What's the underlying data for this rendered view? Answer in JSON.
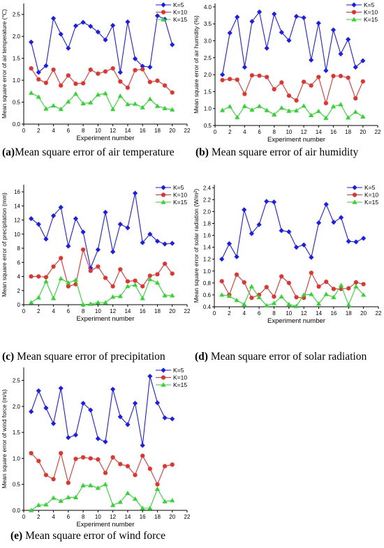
{
  "colors": {
    "k5": "#1a1aff",
    "k10": "#e8312b",
    "k15": "#2bd92b"
  },
  "legend_labels": [
    "K=5",
    "K=10",
    "K=15"
  ],
  "panels": [
    {
      "caption_letter": "(a)",
      "caption_text": "Mean square error of air temperature",
      "chart_data": {
        "type": "line",
        "xlabel": "Experiment number",
        "ylabel": "Mean square error of air temperature (℃)",
        "xlim": [
          0,
          22
        ],
        "xticks": [
          0,
          2,
          4,
          6,
          8,
          10,
          12,
          14,
          16,
          18,
          20,
          22
        ],
        "ylim": [
          0.0,
          2.75
        ],
        "yticks": [
          0.0,
          0.5,
          1.0,
          1.5,
          2.0,
          2.5
        ],
        "ytick_decimals": 1,
        "x": [
          1,
          2,
          3,
          4,
          5,
          6,
          7,
          8,
          9,
          10,
          11,
          12,
          13,
          14,
          15,
          16,
          17,
          18,
          19,
          20
        ],
        "series": [
          {
            "name": "K=5",
            "values": [
              1.87,
              1.18,
              1.33,
              2.41,
              2.05,
              1.73,
              2.24,
              2.32,
              2.23,
              2.1,
              1.92,
              2.25,
              1.18,
              2.33,
              1.49,
              1.32,
              1.3,
              2.47,
              2.39,
              1.81
            ]
          },
          {
            "name": "K=10",
            "values": [
              1.27,
              1.02,
              0.94,
              1.24,
              0.88,
              1.11,
              0.92,
              0.93,
              1.24,
              1.15,
              1.2,
              1.27,
              0.97,
              0.83,
              1.23,
              1.25,
              0.96,
              0.99,
              0.88,
              0.72
            ]
          },
          {
            "name": "K=15",
            "values": [
              0.71,
              0.62,
              0.35,
              0.42,
              0.34,
              0.51,
              0.69,
              0.47,
              0.49,
              0.67,
              0.7,
              0.34,
              0.64,
              0.45,
              0.46,
              0.38,
              0.57,
              0.41,
              0.36,
              0.33
            ]
          }
        ]
      }
    },
    {
      "caption_letter": "(b)",
      "caption_text": " Mean square error of air humidity",
      "chart_data": {
        "type": "line",
        "xlabel": "Experiment number",
        "ylabel": "Mean square error of air humidity (%)",
        "xlim": [
          0,
          22
        ],
        "xticks": [
          0,
          2,
          4,
          6,
          8,
          10,
          12,
          14,
          16,
          18,
          20,
          22
        ],
        "ylim": [
          0.5,
          4.1
        ],
        "yticks": [
          0.5,
          1.0,
          1.5,
          2.0,
          2.5,
          3.0,
          3.5,
          4.0
        ],
        "ytick_decimals": 1,
        "x": [
          1,
          2,
          3,
          4,
          5,
          6,
          7,
          8,
          9,
          10,
          11,
          12,
          13,
          14,
          15,
          16,
          17,
          18,
          19,
          20
        ],
        "series": [
          {
            "name": "K=5",
            "values": [
              2.0,
              3.23,
              3.7,
              2.22,
              3.57,
              3.85,
              2.78,
              3.79,
              3.25,
              3.01,
              3.72,
              3.68,
              2.43,
              3.52,
              2.12,
              3.32,
              2.61,
              3.04,
              2.22,
              2.41
            ]
          },
          {
            "name": "K=10",
            "values": [
              1.84,
              1.87,
              1.85,
              1.43,
              1.98,
              1.97,
              1.93,
              1.57,
              1.77,
              1.38,
              1.24,
              1.79,
              1.68,
              1.93,
              1.16,
              1.96,
              1.96,
              1.91,
              1.3,
              1.8
            ]
          },
          {
            "name": "K=15",
            "values": [
              0.95,
              1.06,
              0.74,
              1.07,
              0.96,
              1.07,
              0.95,
              0.82,
              1.02,
              0.93,
              0.94,
              1.08,
              0.8,
              0.92,
              0.72,
              1.06,
              1.12,
              0.73,
              0.9,
              0.76
            ]
          }
        ]
      }
    },
    {
      "caption_letter": "(c)",
      "caption_text": " Mean square error of precipitation",
      "chart_data": {
        "type": "line",
        "xlabel": "Experiment number",
        "ylabel": "Mean square error of precipitation (mm)",
        "xlim": [
          0,
          22
        ],
        "xticks": [
          0,
          2,
          4,
          6,
          8,
          10,
          12,
          14,
          16,
          18,
          20,
          22
        ],
        "ylim": [
          0,
          17
        ],
        "yticks": [
          0,
          2,
          4,
          6,
          8,
          10,
          12,
          14,
          16
        ],
        "ytick_decimals": 0,
        "x": [
          1,
          2,
          3,
          4,
          5,
          6,
          7,
          8,
          9,
          10,
          11,
          12,
          13,
          14,
          15,
          16,
          17,
          18,
          19,
          20
        ],
        "series": [
          {
            "name": "K=5",
            "values": [
              12.2,
              11.4,
              9.3,
              12.6,
              13.8,
              8.3,
              12.2,
              10.3,
              5.2,
              7.8,
              13.1,
              7.5,
              11.4,
              10.9,
              15.8,
              8.8,
              10.0,
              9.0,
              8.6,
              8.7
            ]
          },
          {
            "name": "K=10",
            "values": [
              4.0,
              4.0,
              3.9,
              5.4,
              6.6,
              2.6,
              2.9,
              7.8,
              4.8,
              5.4,
              3.8,
              2.6,
              5.0,
              3.3,
              3.4,
              2.6,
              4.1,
              4.3,
              5.8,
              4.4
            ]
          },
          {
            "name": "K=15",
            "values": [
              0.3,
              1.0,
              3.3,
              0.9,
              3.7,
              3.1,
              3.5,
              0.0,
              0.1,
              0.3,
              0.3,
              1.1,
              1.2,
              2.6,
              2.8,
              0.9,
              3.6,
              3.1,
              1.3,
              1.3
            ]
          }
        ]
      }
    },
    {
      "caption_letter": "(d)",
      "caption_text": " Mean square error of solar radiation",
      "chart_data": {
        "type": "line",
        "xlabel": "Experiment number",
        "ylabel": "Mean square error of solar radiation (W/m²)",
        "xlim": [
          0,
          22
        ],
        "xticks": [
          0,
          2,
          4,
          6,
          8,
          10,
          12,
          14,
          16,
          18,
          20,
          22
        ],
        "ylim": [
          0.4,
          2.45
        ],
        "yticks": [
          0.4,
          0.6,
          0.8,
          1.0,
          1.2,
          1.4,
          1.6,
          1.8,
          2.0,
          2.2,
          2.4
        ],
        "ytick_decimals": 1,
        "x": [
          1,
          2,
          3,
          4,
          5,
          6,
          7,
          8,
          9,
          10,
          11,
          12,
          13,
          14,
          15,
          16,
          17,
          18,
          19,
          20
        ],
        "series": [
          {
            "name": "K=5",
            "values": [
              1.2,
              1.46,
              1.24,
              2.03,
              1.63,
              1.78,
              2.17,
              2.16,
              1.68,
              1.66,
              1.4,
              1.44,
              1.23,
              1.81,
              2.12,
              1.82,
              1.9,
              1.5,
              1.49,
              1.55
            ]
          },
          {
            "name": "K=10",
            "values": [
              0.83,
              0.6,
              0.94,
              0.81,
              0.55,
              0.6,
              0.73,
              0.57,
              0.91,
              0.8,
              0.56,
              0.55,
              0.97,
              0.74,
              0.82,
              0.7,
              0.7,
              0.71,
              0.81,
              0.78
            ]
          },
          {
            "name": "K=15",
            "values": [
              0.6,
              0.58,
              0.51,
              0.44,
              0.74,
              0.56,
              0.42,
              0.46,
              0.57,
              0.44,
              0.41,
              0.6,
              0.61,
              0.45,
              0.61,
              0.56,
              0.76,
              0.43,
              0.74,
              0.6
            ]
          }
        ]
      }
    },
    {
      "caption_letter": "(e)",
      "caption_text": " Mean square error of wind force",
      "chart_data": {
        "type": "line",
        "xlabel": "Experiment number",
        "ylabel": "Mean square error of wind force (m/s)",
        "xlim": [
          0,
          22
        ],
        "xticks": [
          0,
          2,
          4,
          6,
          8,
          10,
          12,
          14,
          16,
          18,
          20,
          22
        ],
        "ylim": [
          0.0,
          2.75
        ],
        "yticks": [
          0.0,
          0.5,
          1.0,
          1.5,
          2.0,
          2.5
        ],
        "ytick_decimals": 1,
        "x": [
          1,
          2,
          3,
          4,
          5,
          6,
          7,
          8,
          9,
          10,
          11,
          12,
          13,
          14,
          15,
          16,
          17,
          18,
          19,
          20
        ],
        "series": [
          {
            "name": "K=5",
            "values": [
              1.9,
              2.3,
              1.97,
              1.67,
              2.35,
              1.4,
              1.45,
              2.06,
              1.93,
              1.38,
              1.32,
              2.33,
              1.8,
              1.65,
              2.06,
              1.25,
              2.58,
              2.07,
              1.78,
              1.76
            ]
          },
          {
            "name": "K=10",
            "values": [
              1.1,
              0.95,
              0.68,
              0.6,
              1.1,
              0.53,
              0.99,
              1.02,
              1.0,
              0.98,
              0.72,
              1.02,
              0.89,
              0.85,
              0.68,
              1.05,
              0.8,
              0.5,
              0.85,
              0.88
            ]
          },
          {
            "name": "K=15",
            "values": [
              0.0,
              0.1,
              0.11,
              0.24,
              0.18,
              0.25,
              0.25,
              0.48,
              0.48,
              0.43,
              0.5,
              0.1,
              0.16,
              0.33,
              0.22,
              0.04,
              0.04,
              0.41,
              0.17,
              0.19
            ]
          }
        ]
      }
    }
  ]
}
